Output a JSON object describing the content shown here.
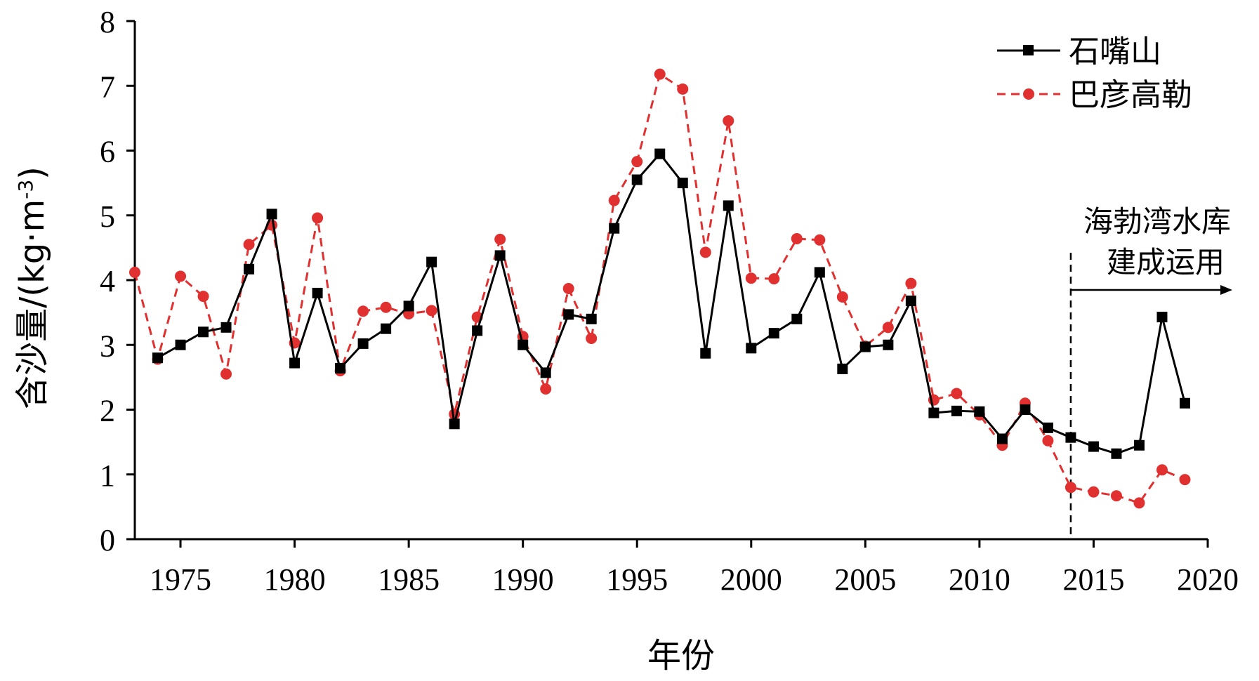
{
  "chart_data": {
    "type": "line",
    "title": "",
    "xlabel": "年份",
    "ylabel": "含沙量/(kg·m",
    "ylabel_sup": "-3",
    "ylabel_close": ")",
    "xlim": [
      1973,
      2020
    ],
    "ylim": [
      0,
      8
    ],
    "xticks": [
      1975,
      1980,
      1985,
      1990,
      1995,
      2000,
      2005,
      2010,
      2015,
      2020
    ],
    "yticks": [
      0,
      1,
      2,
      3,
      4,
      5,
      6,
      7,
      8
    ],
    "grid": false,
    "legend": "top-right",
    "x": [
      1973,
      1974,
      1975,
      1976,
      1977,
      1978,
      1979,
      1980,
      1981,
      1982,
      1983,
      1984,
      1985,
      1986,
      1987,
      1988,
      1989,
      1990,
      1991,
      1992,
      1993,
      1994,
      1995,
      1996,
      1997,
      1998,
      1999,
      2000,
      2001,
      2002,
      2003,
      2004,
      2005,
      2006,
      2007,
      2008,
      2009,
      2010,
      2011,
      2012,
      2013,
      2014,
      2015,
      2016,
      2017,
      2018,
      2019
    ],
    "series": [
      {
        "name": "石嘴山",
        "color": "#000000",
        "style": "solid",
        "marker": "square",
        "values": [
          null,
          2.8,
          3.0,
          3.2,
          3.27,
          4.17,
          5.02,
          2.72,
          3.8,
          2.64,
          3.02,
          3.25,
          3.6,
          4.28,
          1.78,
          3.22,
          4.38,
          3.0,
          2.57,
          3.47,
          3.4,
          4.8,
          5.55,
          5.95,
          5.5,
          2.87,
          5.15,
          2.95,
          3.18,
          3.4,
          4.12,
          2.63,
          2.97,
          3.0,
          3.68,
          1.95,
          1.98,
          1.97,
          1.55,
          2.0,
          1.72,
          1.57,
          1.43,
          1.32,
          1.45,
          3.43,
          2.1
        ]
      },
      {
        "name": "巴彦高勒",
        "color": "#e03030",
        "style": "dashed",
        "marker": "circle",
        "values": [
          4.12,
          2.78,
          4.06,
          3.75,
          2.55,
          4.55,
          4.85,
          3.03,
          4.96,
          2.6,
          3.52,
          3.58,
          3.48,
          3.53,
          1.93,
          3.43,
          4.63,
          3.13,
          2.32,
          3.87,
          3.1,
          5.23,
          5.83,
          7.18,
          6.95,
          4.43,
          6.46,
          4.03,
          4.02,
          4.64,
          4.62,
          3.74,
          2.98,
          3.27,
          3.95,
          2.15,
          2.25,
          1.92,
          1.45,
          2.1,
          1.52,
          0.8,
          0.73,
          0.67,
          0.56,
          1.07,
          0.92
        ]
      }
    ],
    "annotation": {
      "line1": "海勃湾水库",
      "line2": "建成运用",
      "x": 2014
    }
  }
}
